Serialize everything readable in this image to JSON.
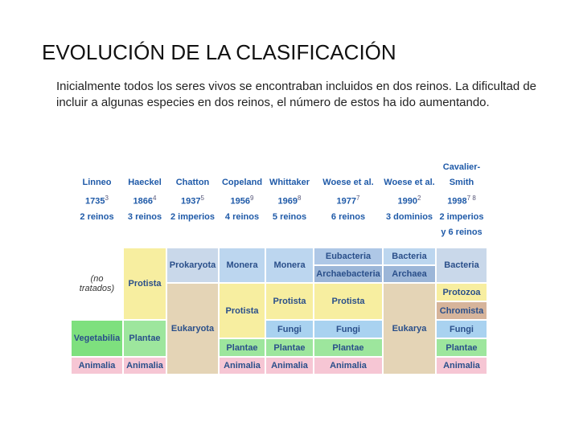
{
  "header": {
    "title": "EVOLUCIÓN DE LA CLASIFICACIÓN"
  },
  "intro": "Inicialmente todos los seres vivos se encontraban incluidos en dos reinos. La dificultad de incluir a algunas especies en dos reinos, el número de estos ha ido aumentando.",
  "table": {
    "columns": [
      {
        "name": "Linneo",
        "year": "1735",
        "ref": "3",
        "kingdoms": "2 reinos"
      },
      {
        "name": "Haeckel",
        "year": "1866",
        "ref": "4",
        "kingdoms": "3 reinos"
      },
      {
        "name": "Chatton",
        "year": "1937",
        "ref": "5",
        "kingdoms": "2 imperios"
      },
      {
        "name": "Copeland",
        "year": "1956",
        "ref": "9",
        "kingdoms": "4 reinos"
      },
      {
        "name": "Whittaker",
        "year": "1969",
        "ref": "8",
        "kingdoms": "5 reinos"
      },
      {
        "name": "Woese et al.",
        "year": "1977",
        "ref": "7",
        "kingdoms": "6 reinos"
      },
      {
        "name": "Woese et al.",
        "year": "1990",
        "ref": "2",
        "kingdoms": "3 dominios"
      },
      {
        "name": "Cavalier-Smith",
        "year": "1998",
        "ref": "7 8",
        "kingdoms": "2 imperios y 6 reinos"
      }
    ],
    "cells": [
      "(no tratados)",
      "Vegetabilia",
      "Animalia",
      "Protista",
      "Plantae",
      "Animalia",
      "Prokaryota",
      "Eukaryota",
      "Monera",
      "Protista",
      "Plantae",
      "Animalia",
      "Monera",
      "Protista",
      "Fungi",
      "Plantae",
      "Animalia",
      "Eubacteria",
      "Archaebacteria",
      "Protista",
      "Fungi",
      "Plantae",
      "Animalia",
      "Bacteria",
      "Archaea",
      "Eukarya",
      "Bacteria",
      "Protozoa",
      "Chromista",
      "Fungi",
      "Plantae",
      "Animalia"
    ]
  }
}
